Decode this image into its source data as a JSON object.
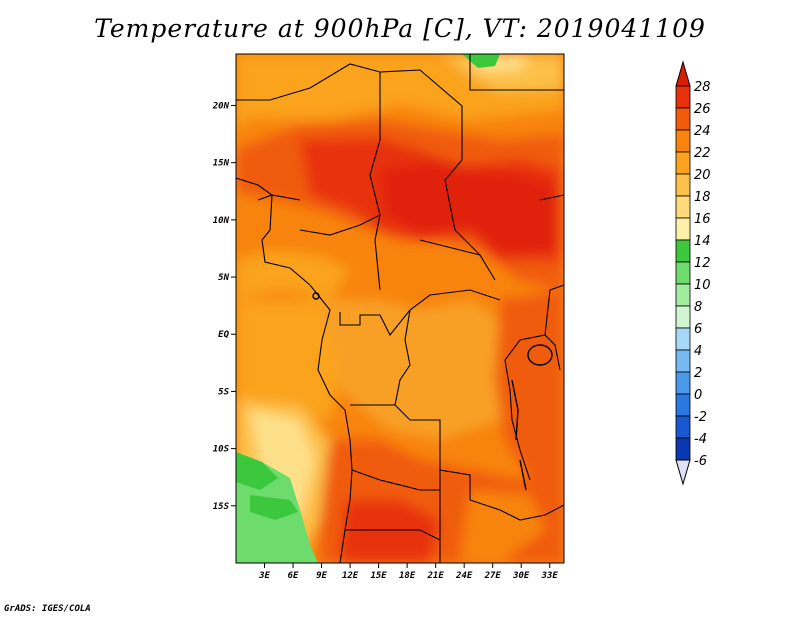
{
  "title": "Temperature at 900hPa [C], VT: 2019041109",
  "credit": "GrADS: IGES/COLA",
  "map": {
    "lat_range": [
      -20,
      24.5
    ],
    "lon_range": [
      0,
      34.5
    ],
    "lat_ticks": [
      {
        "value": 20,
        "label": "20N"
      },
      {
        "value": 15,
        "label": "15N"
      },
      {
        "value": 10,
        "label": "10N"
      },
      {
        "value": 5,
        "label": "5N"
      },
      {
        "value": 0,
        "label": "EQ"
      },
      {
        "value": -5,
        "label": "5S"
      },
      {
        "value": -10,
        "label": "10S"
      },
      {
        "value": -15,
        "label": "15S"
      }
    ],
    "lon_ticks": [
      {
        "value": 3,
        "label": "3E"
      },
      {
        "value": 6,
        "label": "6E"
      },
      {
        "value": 9,
        "label": "9E"
      },
      {
        "value": 12,
        "label": "12E"
      },
      {
        "value": 15,
        "label": "15E"
      },
      {
        "value": 18,
        "label": "18E"
      },
      {
        "value": 21,
        "label": "21E"
      },
      {
        "value": 24,
        "label": "24E"
      },
      {
        "value": 27,
        "label": "27E"
      },
      {
        "value": 30,
        "label": "30E"
      },
      {
        "value": 33,
        "label": "33E"
      }
    ]
  },
  "colorbar": {
    "levels": [
      {
        "label": "28",
        "color": "#e8300a"
      },
      {
        "label": "26",
        "color": "#f05c0c"
      },
      {
        "label": "24",
        "color": "#f8840e"
      },
      {
        "label": "22",
        "color": "#fba31e"
      },
      {
        "label": "20",
        "color": "#fdc04a"
      },
      {
        "label": "18",
        "color": "#feda7a"
      },
      {
        "label": "16",
        "color": "#fef0a8"
      },
      {
        "label": "14",
        "color": "#3cc83c"
      },
      {
        "label": "12",
        "color": "#6ddc6d"
      },
      {
        "label": "10",
        "color": "#a0eda0"
      },
      {
        "label": "8",
        "color": "#d0f5d0"
      },
      {
        "label": "6",
        "color": "#a8d8f8"
      },
      {
        "label": "4",
        "color": "#78b8f0"
      },
      {
        "label": "2",
        "color": "#4a98e8"
      },
      {
        "label": "0",
        "color": "#2a78e0"
      },
      {
        "label": "-2",
        "color": "#1858d0"
      },
      {
        "label": "-4",
        "color": "#0a38b0"
      },
      {
        "label": "-6",
        "color": "#081880"
      }
    ],
    "top_color": "#d81e05",
    "bottom_color": "#e0e0f8"
  },
  "regions": [
    {
      "name": "sahel-hot-core-west",
      "color": "#e8300a"
    },
    {
      "name": "sahel-hot-core-east",
      "color": "#e02008"
    },
    {
      "name": "congo-basin",
      "color": "#f8a028"
    },
    {
      "name": "angola-coast-cool",
      "color": "#fee08a"
    },
    {
      "name": "namibia-green",
      "color": "#6ddc6d"
    },
    {
      "name": "kalahari-hot",
      "color": "#e8300a"
    }
  ]
}
